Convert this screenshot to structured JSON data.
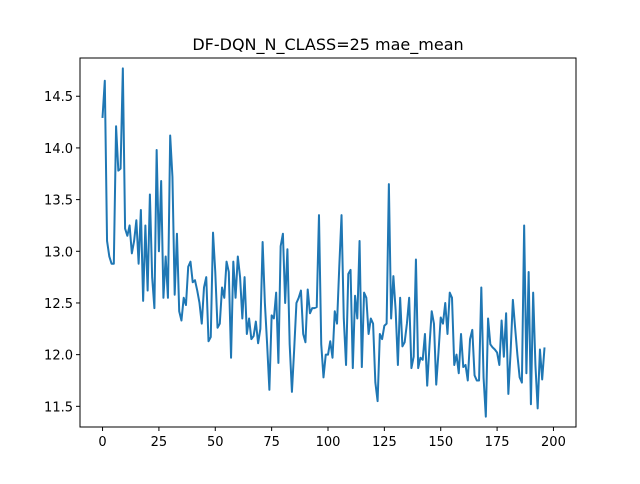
{
  "chart_data": {
    "type": "line",
    "title": "DF-DQN_N_CLASS=25 mae_mean",
    "xlabel": "",
    "ylabel": "",
    "xlim": [
      -10,
      210
    ],
    "ylim": [
      11.3,
      14.87
    ],
    "xticks": [
      0,
      25,
      50,
      75,
      100,
      125,
      150,
      175,
      200
    ],
    "yticks": [
      11.5,
      12.0,
      12.5,
      13.0,
      13.5,
      14.0,
      14.5
    ],
    "ytick_labels": [
      "11.5",
      "12.0",
      "12.5",
      "13.0",
      "13.5",
      "14.0",
      "14.5"
    ],
    "grid": false,
    "line_color": "#1f77b4",
    "series": [
      {
        "x_start": 0,
        "x_step": 1,
        "values": [
          14.3,
          14.65,
          13.1,
          12.95,
          12.88,
          12.88,
          14.21,
          13.78,
          13.8,
          14.77,
          13.22,
          13.15,
          13.25,
          12.98,
          13.1,
          13.3,
          12.88,
          13.4,
          12.52,
          13.25,
          12.62,
          13.55,
          12.75,
          12.45,
          13.98,
          13.0,
          13.68,
          12.55,
          12.95,
          12.55,
          14.12,
          13.72,
          12.58,
          13.17,
          12.42,
          12.33,
          12.55,
          12.48,
          12.85,
          12.9,
          12.7,
          12.72,
          12.62,
          12.5,
          12.3,
          12.65,
          12.75,
          12.13,
          12.17,
          13.18,
          12.8,
          12.26,
          12.3,
          12.65,
          12.55,
          12.9,
          12.8,
          11.97,
          12.9,
          12.55,
          12.95,
          12.75,
          12.35,
          12.75,
          12.2,
          12.35,
          12.15,
          12.18,
          12.32,
          12.11,
          12.25,
          13.09,
          12.5,
          12.1,
          11.66,
          12.38,
          12.35,
          12.6,
          11.92,
          13.05,
          13.17,
          12.5,
          13.02,
          12.1,
          11.64,
          12.05,
          12.5,
          12.55,
          12.62,
          12.2,
          12.12,
          12.63,
          12.4,
          12.45,
          12.45,
          12.46,
          13.35,
          12.1,
          11.78,
          12.0,
          12.0,
          12.13,
          11.97,
          12.42,
          12.3,
          12.85,
          13.35,
          12.35,
          11.9,
          12.78,
          12.82,
          11.87,
          12.57,
          12.35,
          13.1,
          11.88,
          12.6,
          12.55,
          12.2,
          12.35,
          12.3,
          11.73,
          11.55,
          12.2,
          12.15,
          12.28,
          12.3,
          13.65,
          12.35,
          12.76,
          12.43,
          11.9,
          12.55,
          12.08,
          12.12,
          12.3,
          12.55,
          11.87,
          11.98,
          12.92,
          11.87,
          11.97,
          11.95,
          12.2,
          11.7,
          12.08,
          12.42,
          12.3,
          11.71,
          12.02,
          12.36,
          12.3,
          12.5,
          12.2,
          12.6,
          12.55,
          11.9,
          12.0,
          11.82,
          12.2,
          11.88,
          11.9,
          11.75,
          12.15,
          12.24,
          11.8,
          11.75,
          11.75,
          12.65,
          11.78,
          11.4,
          12.35,
          12.1,
          12.07,
          12.05,
          12.02,
          11.9,
          12.33,
          11.98,
          12.4,
          11.62,
          12.03,
          12.53,
          12.26,
          12.0,
          11.78,
          11.73,
          13.25,
          11.82,
          12.8,
          11.52,
          12.6,
          11.9,
          11.48,
          12.05,
          11.76,
          12.06
        ]
      }
    ]
  }
}
